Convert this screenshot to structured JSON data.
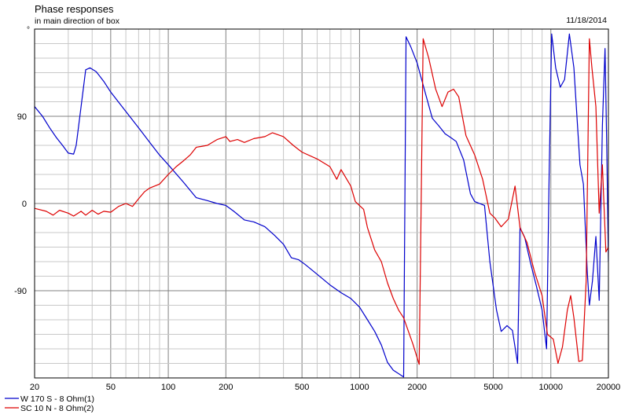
{
  "chart_data": {
    "type": "line",
    "title": "Phase responses",
    "subtitle": "in main direction of box",
    "date": "11/18/2014",
    "y_unit": "°",
    "xscale": "log",
    "xlim": [
      20,
      20000
    ],
    "ylim": [
      -180,
      180
    ],
    "x_ticks": [
      20,
      50,
      100,
      200,
      500,
      1000,
      2000,
      5000,
      10000,
      20000
    ],
    "x_tick_labels": [
      "20",
      "50",
      "100",
      "200",
      "500",
      "1000",
      "2000",
      "5000",
      "10000",
      "20000"
    ],
    "y_ticks": [
      90,
      0,
      -90
    ],
    "y_tick_labels": [
      "90",
      "0",
      "-90"
    ],
    "grid": true,
    "legend_position": "bottom-left",
    "series": [
      {
        "name": "W 170 S - 8 Ohm(1)",
        "color": "#0000cc",
        "points": [
          [
            20,
            100
          ],
          [
            22,
            90
          ],
          [
            24,
            78
          ],
          [
            26,
            68
          ],
          [
            28,
            60
          ],
          [
            30,
            52
          ],
          [
            32,
            51
          ],
          [
            33,
            60
          ],
          [
            35,
            100
          ],
          [
            37,
            138
          ],
          [
            39,
            140
          ],
          [
            42,
            136
          ],
          [
            46,
            126
          ],
          [
            50,
            115
          ],
          [
            60,
            95
          ],
          [
            70,
            78
          ],
          [
            80,
            63
          ],
          [
            90,
            50
          ],
          [
            100,
            40
          ],
          [
            120,
            22
          ],
          [
            140,
            6
          ],
          [
            160,
            3
          ],
          [
            180,
            0
          ],
          [
            200,
            -2
          ],
          [
            220,
            -8
          ],
          [
            250,
            -17
          ],
          [
            280,
            -19
          ],
          [
            320,
            -24
          ],
          [
            360,
            -33
          ],
          [
            400,
            -42
          ],
          [
            440,
            -56
          ],
          [
            480,
            -58
          ],
          [
            520,
            -63
          ],
          [
            600,
            -73
          ],
          [
            700,
            -84
          ],
          [
            800,
            -92
          ],
          [
            900,
            -98
          ],
          [
            1000,
            -107
          ],
          [
            1100,
            -120
          ],
          [
            1200,
            -132
          ],
          [
            1300,
            -146
          ],
          [
            1400,
            -164
          ],
          [
            1500,
            -172
          ],
          [
            1700,
            -179
          ],
          [
            1750,
            172
          ],
          [
            1850,
            162
          ],
          [
            2000,
            145
          ],
          [
            2200,
            115
          ],
          [
            2400,
            88
          ],
          [
            2600,
            80
          ],
          [
            2800,
            72
          ],
          [
            3000,
            68
          ],
          [
            3200,
            64
          ],
          [
            3500,
            45
          ],
          [
            3800,
            10
          ],
          [
            4000,
            2
          ],
          [
            4500,
            -2
          ],
          [
            4800,
            -60
          ],
          [
            5200,
            -110
          ],
          [
            5500,
            -132
          ],
          [
            5900,
            -126
          ],
          [
            6300,
            -131
          ],
          [
            6700,
            -165
          ],
          [
            6900,
            -25
          ],
          [
            7300,
            -35
          ],
          [
            7800,
            -60
          ],
          [
            8400,
            -85
          ],
          [
            9000,
            -110
          ],
          [
            9500,
            -150
          ],
          [
            9800,
            30
          ],
          [
            10100,
            175
          ],
          [
            10600,
            140
          ],
          [
            11200,
            120
          ],
          [
            11800,
            128
          ],
          [
            12500,
            175
          ],
          [
            13200,
            140
          ],
          [
            14200,
            40
          ],
          [
            14800,
            20
          ],
          [
            15500,
            -70
          ],
          [
            15900,
            -105
          ],
          [
            16500,
            -80
          ],
          [
            17200,
            -34
          ],
          [
            17900,
            -100
          ],
          [
            18600,
            80
          ],
          [
            19200,
            160
          ],
          [
            19600,
            60
          ],
          [
            20000,
            -60
          ]
        ]
      },
      {
        "name": "SC 10 N - 8 Ohm(2)",
        "color": "#dd0000",
        "points": [
          [
            20,
            -5
          ],
          [
            23,
            -8
          ],
          [
            25,
            -12
          ],
          [
            27,
            -7
          ],
          [
            30,
            -10
          ],
          [
            32,
            -13
          ],
          [
            35,
            -8
          ],
          [
            37,
            -12
          ],
          [
            40,
            -7
          ],
          [
            43,
            -11
          ],
          [
            46,
            -8
          ],
          [
            50,
            -9
          ],
          [
            55,
            -3
          ],
          [
            60,
            0
          ],
          [
            65,
            -3
          ],
          [
            70,
            5
          ],
          [
            75,
            12
          ],
          [
            80,
            16
          ],
          [
            90,
            20
          ],
          [
            100,
            30
          ],
          [
            110,
            38
          ],
          [
            120,
            44
          ],
          [
            130,
            50
          ],
          [
            140,
            58
          ],
          [
            160,
            60
          ],
          [
            180,
            66
          ],
          [
            200,
            69
          ],
          [
            210,
            64
          ],
          [
            230,
            66
          ],
          [
            250,
            63
          ],
          [
            280,
            67
          ],
          [
            320,
            69
          ],
          [
            350,
            73
          ],
          [
            400,
            69
          ],
          [
            450,
            60
          ],
          [
            500,
            53
          ],
          [
            600,
            46
          ],
          [
            700,
            38
          ],
          [
            760,
            25
          ],
          [
            800,
            35
          ],
          [
            900,
            18
          ],
          [
            950,
            2
          ],
          [
            1050,
            -6
          ],
          [
            1100,
            -25
          ],
          [
            1200,
            -48
          ],
          [
            1300,
            -60
          ],
          [
            1400,
            -82
          ],
          [
            1500,
            -98
          ],
          [
            1600,
            -110
          ],
          [
            1700,
            -118
          ],
          [
            1900,
            -145
          ],
          [
            2050,
            -166
          ],
          [
            2150,
            170
          ],
          [
            2300,
            150
          ],
          [
            2500,
            118
          ],
          [
            2700,
            100
          ],
          [
            2900,
            115
          ],
          [
            3100,
            118
          ],
          [
            3300,
            110
          ],
          [
            3600,
            70
          ],
          [
            4000,
            50
          ],
          [
            4400,
            25
          ],
          [
            4800,
            -10
          ],
          [
            5100,
            -15
          ],
          [
            5500,
            -24
          ],
          [
            6000,
            -16
          ],
          [
            6500,
            18
          ],
          [
            6900,
            -25
          ],
          [
            7500,
            -40
          ],
          [
            8200,
            -70
          ],
          [
            9000,
            -95
          ],
          [
            9600,
            -135
          ],
          [
            10300,
            -140
          ],
          [
            10900,
            -165
          ],
          [
            11500,
            -148
          ],
          [
            12200,
            -110
          ],
          [
            12700,
            -95
          ],
          [
            13200,
            -118
          ],
          [
            14000,
            -163
          ],
          [
            14600,
            -162
          ],
          [
            15300,
            -80
          ],
          [
            15900,
            170
          ],
          [
            16400,
            140
          ],
          [
            17200,
            100
          ],
          [
            17900,
            -10
          ],
          [
            18600,
            40
          ],
          [
            19400,
            -50
          ],
          [
            20000,
            -45
          ]
        ]
      }
    ]
  }
}
